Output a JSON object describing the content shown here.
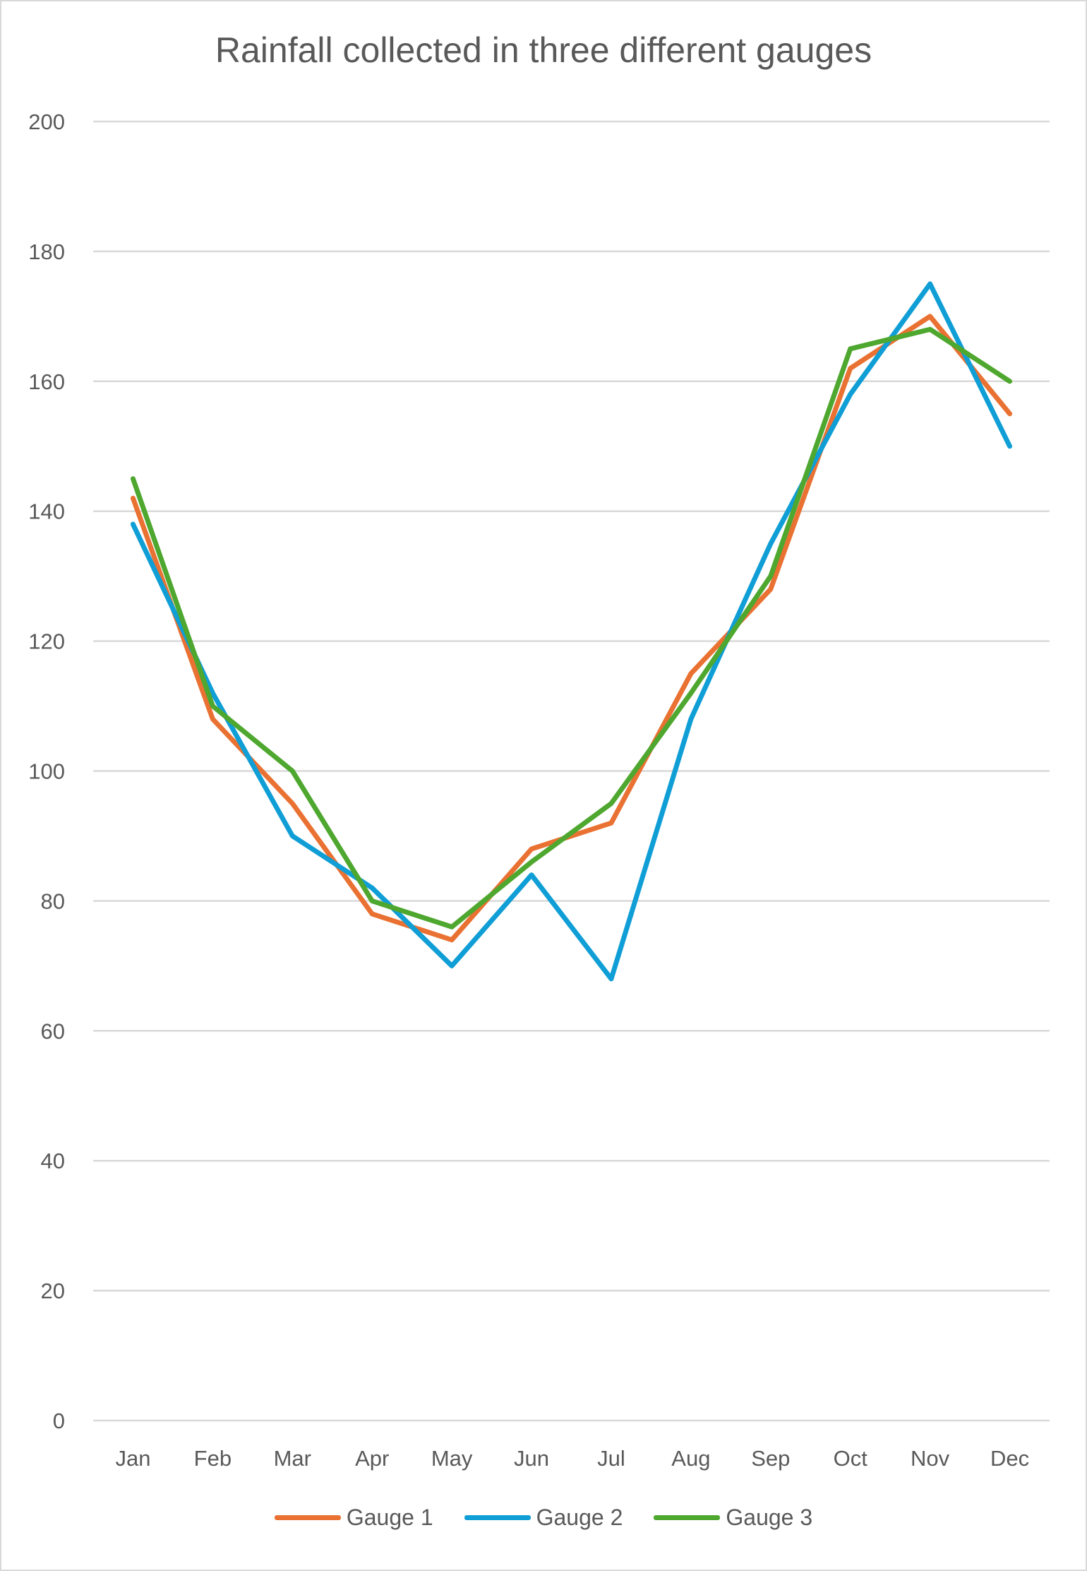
{
  "chart_data": {
    "type": "line",
    "title": "Rainfall collected in three different gauges",
    "xlabel": "",
    "ylabel": "",
    "categories": [
      "Jan",
      "Feb",
      "Mar",
      "Apr",
      "May",
      "Jun",
      "Jul",
      "Aug",
      "Sep",
      "Oct",
      "Nov",
      "Dec"
    ],
    "ylim": [
      0,
      200
    ],
    "yticks": [
      0,
      20,
      40,
      60,
      80,
      100,
      120,
      140,
      160,
      180,
      200
    ],
    "grid": true,
    "legend": "bottom",
    "series": [
      {
        "name": "Gauge 1",
        "color": "#E97132",
        "values": [
          142,
          108,
          95,
          78,
          74,
          88,
          92,
          115,
          128,
          162,
          170,
          155
        ]
      },
      {
        "name": "Gauge 2",
        "color": "#0F9ED5",
        "values": [
          138,
          112,
          90,
          82,
          70,
          84,
          68,
          108,
          135,
          158,
          175,
          150
        ]
      },
      {
        "name": "Gauge 3",
        "color": "#4EA72E",
        "values": [
          145,
          110,
          100,
          80,
          76,
          86,
          95,
          112,
          130,
          165,
          168,
          160
        ]
      }
    ]
  }
}
